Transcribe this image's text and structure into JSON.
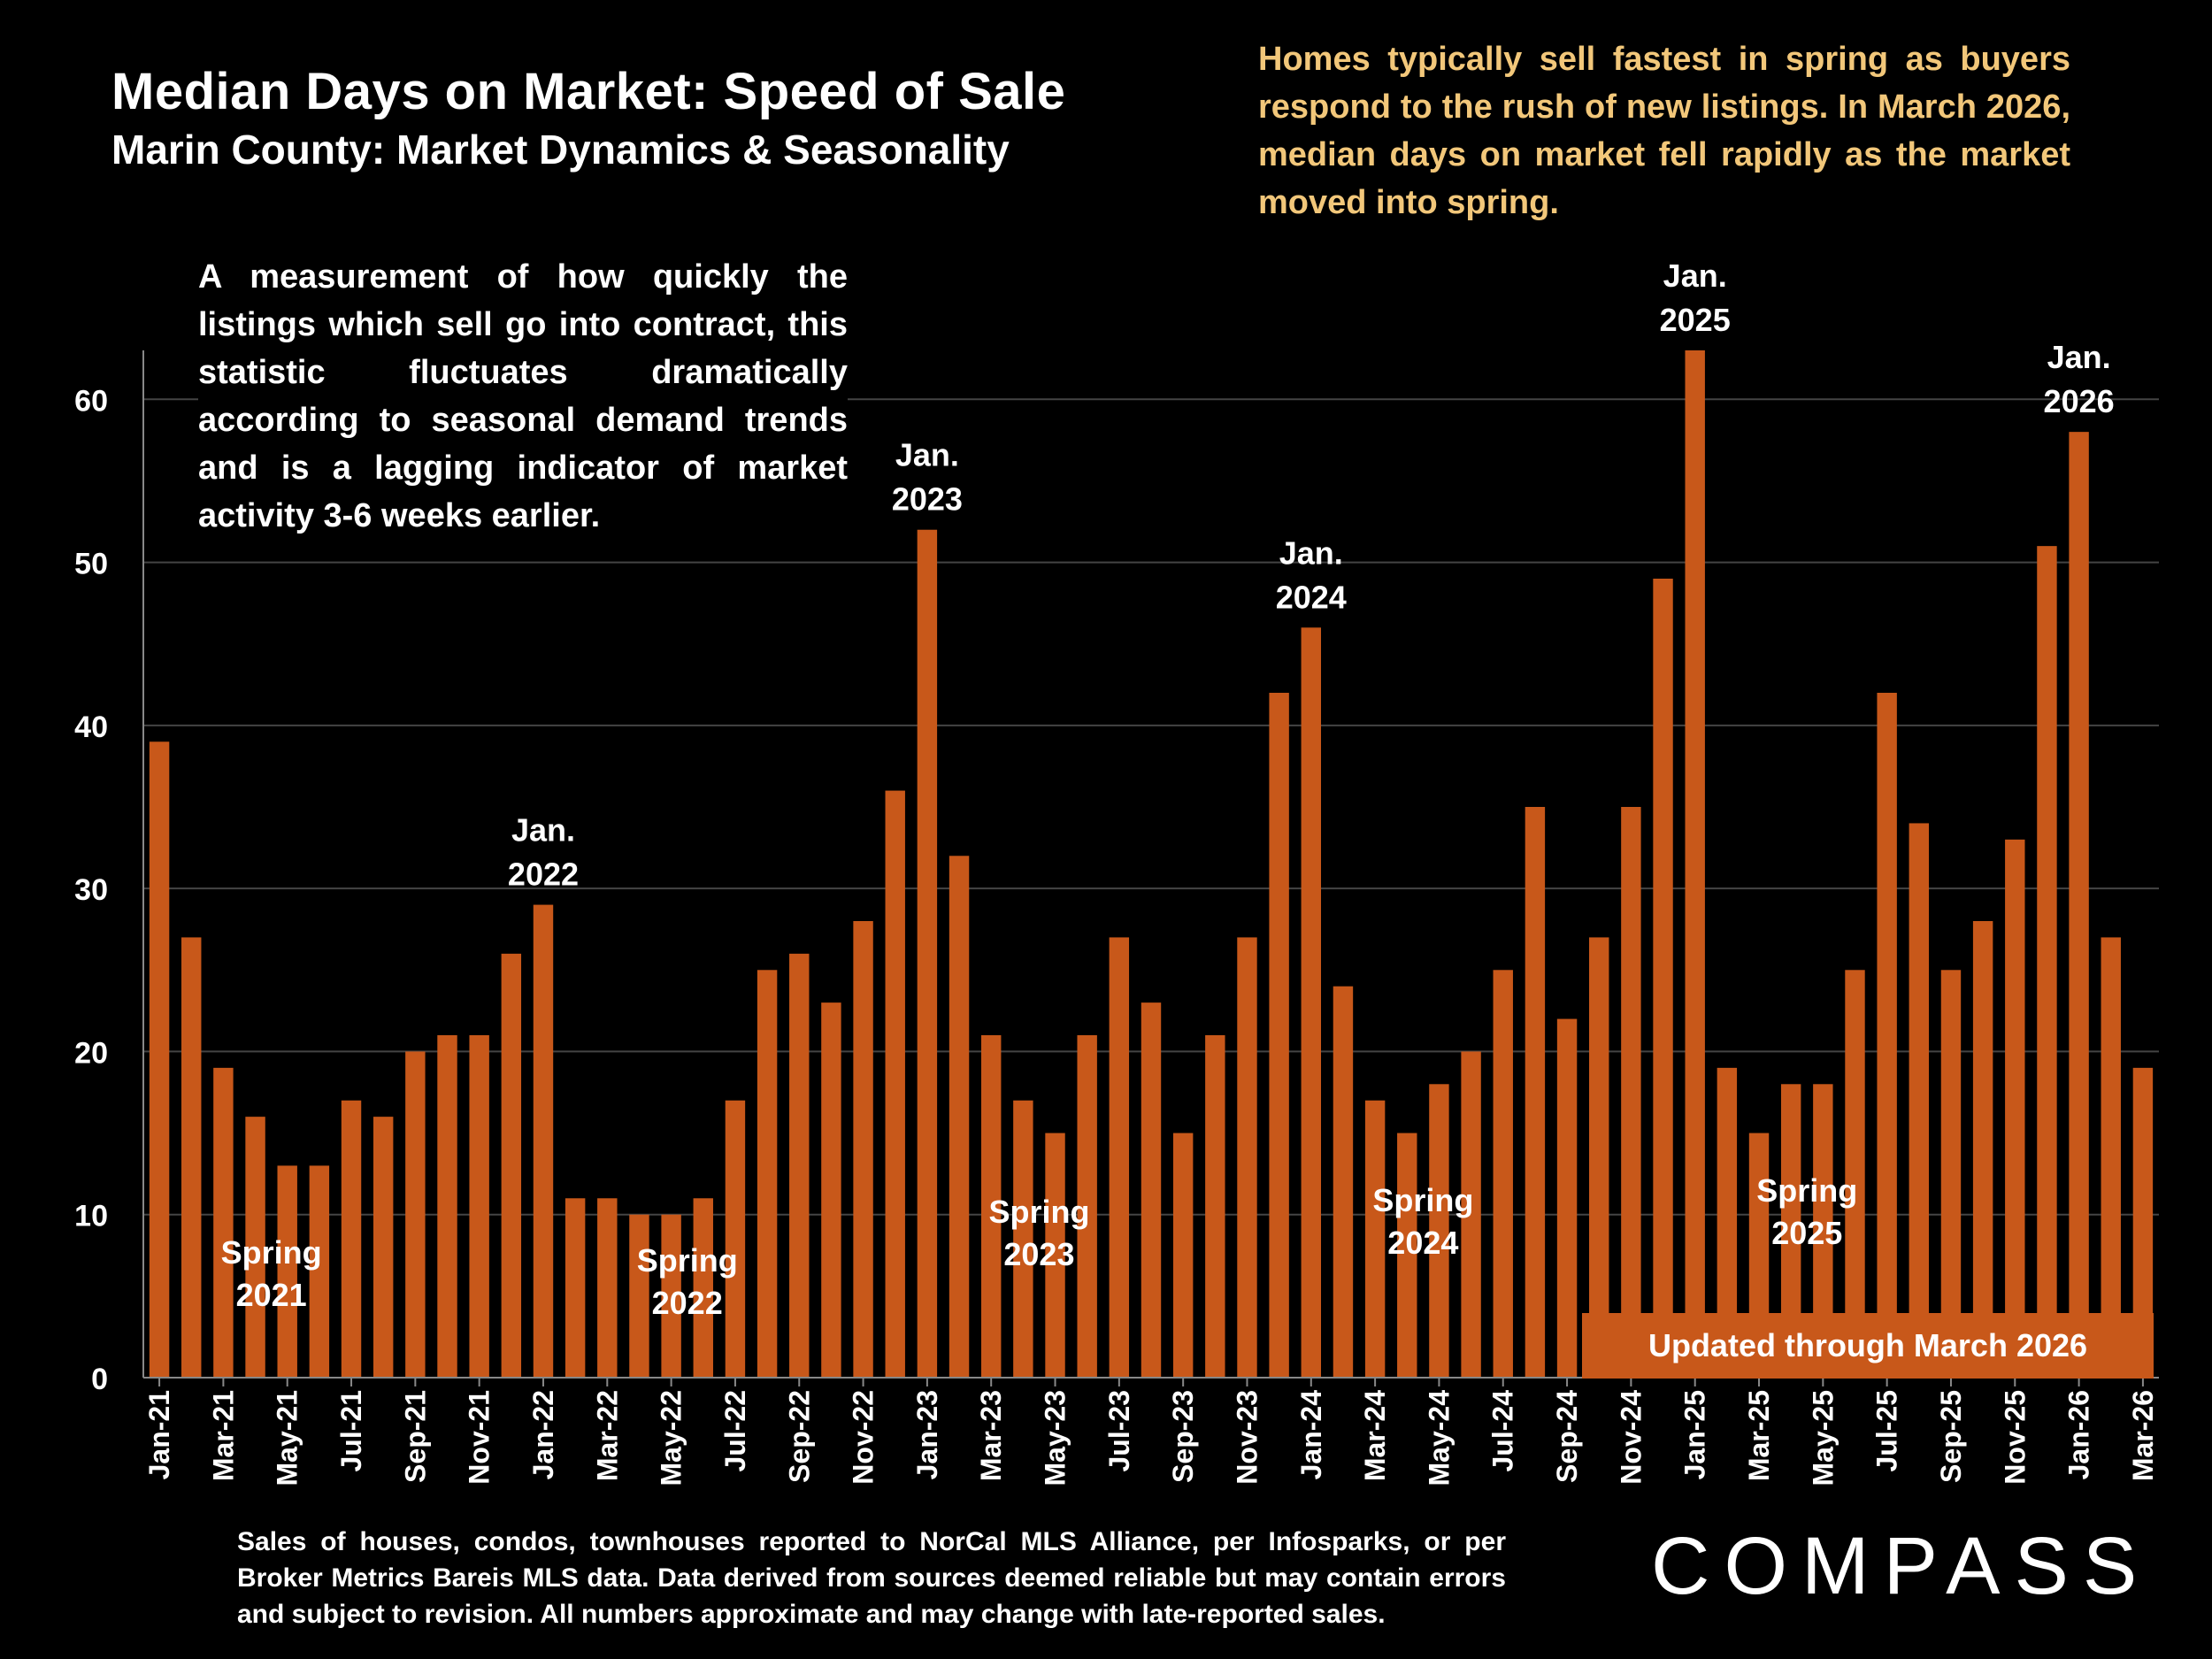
{
  "title": "Median Days on Market:  Speed of Sale",
  "subtitle": "Marin County: Market Dynamics & Seasonality",
  "callout": "Homes typically sell fastest in spring as buyers respond to the rush of new listings. In March 2026, median days on market fell rapidly as the market moved into spring.",
  "explanation": "A measurement of how quickly the listings which sell go into contract, this statistic fluctuates dramatically according to seasonal demand trends and is a lagging indicator of market activity 3-6 weeks earlier.",
  "updated": "Updated through March 2026",
  "footnote": "Sales of houses, condos, townhouses reported to NorCal MLS Alliance, per Infosparks, or per Broker Metrics Bareis MLS data. Data derived from sources deemed reliable but may contain errors and subject to revision. All numbers approximate and may change with late-reported sales.",
  "logo": "COMPASS",
  "colors": {
    "bar": "#c8581a",
    "grid": "#444444",
    "callout": "#f2c77a"
  },
  "chart_data": {
    "type": "bar",
    "ylim": [
      0,
      63
    ],
    "yticks": [
      0,
      10,
      20,
      30,
      40,
      50,
      60
    ],
    "months": [
      "Jan-21",
      "Feb-21",
      "Mar-21",
      "Apr-21",
      "May-21",
      "Jun-21",
      "Jul-21",
      "Aug-21",
      "Sep-21",
      "Oct-21",
      "Nov-21",
      "Dec-21",
      "Jan-22",
      "Feb-22",
      "Mar-22",
      "Apr-22",
      "May-22",
      "Jun-22",
      "Jul-22",
      "Aug-22",
      "Sep-22",
      "Oct-22",
      "Nov-22",
      "Dec-22",
      "Jan-23",
      "Feb-23",
      "Mar-23",
      "Apr-23",
      "May-23",
      "Jun-23",
      "Jul-23",
      "Aug-23",
      "Sep-23",
      "Oct-23",
      "Nov-23",
      "Dec-23",
      "Jan-24",
      "Feb-24",
      "Mar-24",
      "Apr-24",
      "May-24",
      "Jun-24",
      "Jul-24",
      "Aug-24",
      "Sep-24",
      "Oct-24",
      "Nov-24",
      "Dec-24",
      "Jan-25",
      "Feb-25",
      "Mar-25",
      "Apr-25",
      "May-25",
      "Jun-25",
      "Jul-25",
      "Aug-25",
      "Sep-25",
      "Oct-25",
      "Nov-25",
      "Dec-25",
      "Jan-26",
      "Feb-26",
      "Mar-26"
    ],
    "tick_labels": [
      "Jan-21",
      "Mar-21",
      "May-21",
      "Jul-21",
      "Sep-21",
      "Nov-21",
      "Jan-22",
      "Mar-22",
      "May-22",
      "Jul-22",
      "Sep-22",
      "Nov-22",
      "Jan-23",
      "Mar-23",
      "May-23",
      "Jul-23",
      "Sep-23",
      "Nov-23",
      "Jan-24",
      "Mar-24",
      "May-24",
      "Jul-24",
      "Sep-24",
      "Nov-24",
      "Jan-25",
      "Mar-25",
      "May-25",
      "Jul-25",
      "Sep-25",
      "Nov-25",
      "Jan-26",
      "Mar-26"
    ],
    "values": [
      39,
      27,
      19,
      16,
      13,
      13,
      17,
      16,
      20,
      21,
      21,
      26,
      29,
      11,
      11,
      10,
      10,
      11,
      17,
      25,
      26,
      23,
      28,
      36,
      52,
      32,
      21,
      17,
      15,
      21,
      27,
      23,
      15,
      21,
      27,
      42,
      46,
      24,
      17,
      15,
      18,
      20,
      25,
      35,
      22,
      27,
      35,
      49,
      63,
      19,
      15,
      18,
      18,
      25,
      42,
      34,
      25,
      28,
      33,
      51,
      58,
      27,
      19
    ],
    "annotations": [
      {
        "month": "Jan-22",
        "lines": [
          "Jan.",
          "2022"
        ]
      },
      {
        "month": "Jan-23",
        "lines": [
          "Jan.",
          "2023"
        ]
      },
      {
        "month": "Jan-24",
        "lines": [
          "Jan.",
          "2024"
        ]
      },
      {
        "month": "Jan-25",
        "lines": [
          "Jan.",
          "2025"
        ]
      },
      {
        "month": "Jan-26",
        "lines": [
          "Jan.",
          "2026"
        ]
      }
    ],
    "spring_labels": [
      {
        "month": "Apr-21",
        "lines": [
          "Spring",
          "2021"
        ],
        "value": 7
      },
      {
        "month": "May-22",
        "lines": [
          "Spring",
          "2022"
        ],
        "value": 6.5
      },
      {
        "month": "Apr-23",
        "lines": [
          "Spring",
          "2023"
        ],
        "value": 9.5
      },
      {
        "month": "Apr-24",
        "lines": [
          "Spring",
          "2024"
        ],
        "value": 10.2
      },
      {
        "month": "Apr-25",
        "lines": [
          "Spring",
          "2025"
        ],
        "value": 10.8
      }
    ]
  }
}
